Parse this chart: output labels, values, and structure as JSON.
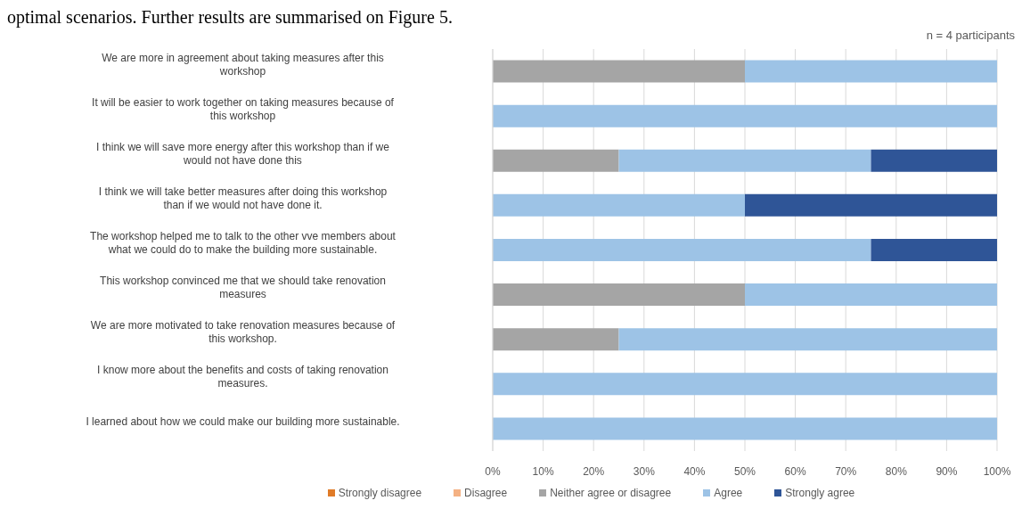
{
  "chart_data": {
    "type": "bar",
    "orientation": "horizontal",
    "stacked": true,
    "subtitle": "n = 4 participants",
    "annotations": [
      "optimal scenarios. Further results are summarised on Figure 5."
    ],
    "categories": [
      "We are more in agreement about taking measures after this workshop",
      "It will be easier to work together on taking measures because of this workshop",
      "I think we will save more energy after this workshop than if we would not have done this",
      "I think we will take better measures after doing this workshop than if we would not have done it.",
      "The workshop helped me to talk to the other vve members about what we could do to make the building more sustainable.",
      "This workshop convinced me that we should take renovation measures",
      "We are more motivated to take renovation measures because of this workshop.",
      "I know more about the benefits and costs of taking renovation measures.",
      "I learned about how we could make our building more sustainable."
    ],
    "series": [
      {
        "name": "Strongly disagree",
        "color": "#e07b28",
        "values": [
          0,
          0,
          0,
          0,
          0,
          0,
          0,
          0,
          0
        ]
      },
      {
        "name": "Disagree",
        "color": "#f4b183",
        "values": [
          0,
          0,
          0,
          0,
          0,
          0,
          0,
          0,
          0
        ]
      },
      {
        "name": "Neither agree or disagree",
        "color": "#a5a5a5",
        "values": [
          50,
          0,
          25,
          0,
          0,
          50,
          25,
          0,
          0
        ]
      },
      {
        "name": "Agree",
        "color": "#9dc3e6",
        "values": [
          50,
          100,
          50,
          50,
          75,
          50,
          75,
          100,
          100
        ]
      },
      {
        "name": "Strongly agree",
        "color": "#2f5597",
        "values": [
          0,
          0,
          25,
          50,
          25,
          0,
          0,
          0,
          0
        ]
      }
    ],
    "xlim": [
      0,
      100
    ],
    "xticks": [
      {
        "value": 0,
        "label": "0%"
      },
      {
        "value": 10,
        "label": "10%"
      },
      {
        "value": 20,
        "label": "20%"
      },
      {
        "value": 30,
        "label": "30%"
      },
      {
        "value": 40,
        "label": "40%"
      },
      {
        "value": 50,
        "label": "50%"
      },
      {
        "value": 60,
        "label": "60%"
      },
      {
        "value": 70,
        "label": "70%"
      },
      {
        "value": 80,
        "label": "80%"
      },
      {
        "value": 90,
        "label": "90%"
      },
      {
        "value": 100,
        "label": "100%"
      }
    ],
    "grid": "x",
    "legend": "bottom"
  }
}
